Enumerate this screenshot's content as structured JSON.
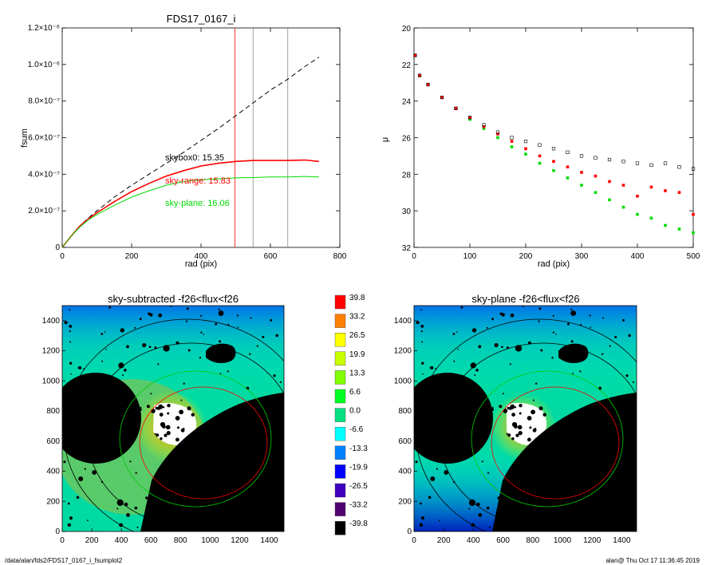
{
  "footer": {
    "path": "/data/alan/fds2/FDS17_0167_i_fsumplot2",
    "user_time": "alan@  Thu Oct 17 11:36:45 2019"
  },
  "chart_data": [
    {
      "type": "line",
      "title": "FDS17_0167_i",
      "xlabel": "rad (pix)",
      "ylabel": "fsum",
      "xlim": [
        0,
        800
      ],
      "ylim": [
        0,
        1.2e-06
      ],
      "x_ticks": [
        "0",
        "200",
        "400",
        "600",
        "800"
      ],
      "y_ticks": [
        "0",
        "2.0×10⁻⁷",
        "4.0×10⁻⁷",
        "6.0×10⁻⁷",
        "8.0×10⁻⁷",
        "1.0×10⁻⁶",
        "1.2×10⁻⁶"
      ],
      "vlines": [
        {
          "x": 498,
          "color": "#ff0000"
        },
        {
          "x": 550,
          "color": "#888888"
        },
        {
          "x": 650,
          "color": "#888888"
        }
      ],
      "annotations": [
        {
          "text": "skybox0: 15.35",
          "color": "#000000"
        },
        {
          "text": "sky-range: 15.83",
          "color": "#ff0000"
        },
        {
          "text": "sky-plane: 16.06",
          "color": "#00dd00"
        }
      ],
      "series": [
        {
          "color": "#000000",
          "style": "dashed",
          "x": [
            0,
            25,
            50,
            75,
            100,
            150,
            200,
            250,
            300,
            350,
            400,
            450,
            500,
            550,
            600,
            650,
            700,
            740
          ],
          "y": [
            0,
            6e-08,
            1.15e-07,
            1.6e-07,
            2e-07,
            2.75e-07,
            3.4e-07,
            4e-07,
            4.6e-07,
            5.2e-07,
            5.85e-07,
            6.5e-07,
            7.2e-07,
            7.9e-07,
            8.6e-07,
            9.2e-07,
            9.9e-07,
            1.04e-06
          ]
        },
        {
          "color": "#ff0000",
          "style": "solid",
          "x": [
            0,
            25,
            50,
            75,
            100,
            150,
            200,
            250,
            300,
            350,
            400,
            450,
            500,
            550,
            600,
            650,
            700,
            740
          ],
          "y": [
            0,
            6e-08,
            1.15e-07,
            1.55e-07,
            1.9e-07,
            2.5e-07,
            3.05e-07,
            3.5e-07,
            3.9e-07,
            4.2e-07,
            4.45e-07,
            4.6e-07,
            4.7e-07,
            4.75e-07,
            4.75e-07,
            4.75e-07,
            4.78e-07,
            4.7e-07
          ]
        },
        {
          "color": "#00dd00",
          "style": "solid",
          "x": [
            0,
            25,
            50,
            75,
            100,
            150,
            200,
            250,
            300,
            350,
            400,
            450,
            500,
            550,
            600,
            650,
            700,
            740
          ],
          "y": [
            0,
            6e-08,
            1.1e-07,
            1.5e-07,
            1.8e-07,
            2.3e-07,
            2.75e-07,
            3.1e-07,
            3.4e-07,
            3.6e-07,
            3.7e-07,
            3.75e-07,
            3.8e-07,
            3.82e-07,
            3.85e-07,
            3.85e-07,
            3.88e-07,
            3.85e-07
          ]
        }
      ]
    },
    {
      "type": "scatter",
      "title": "",
      "xlabel": "rad (pix)",
      "ylabel": "μ",
      "xlim": [
        0,
        500
      ],
      "ylim": [
        32,
        20
      ],
      "x_ticks": [
        "0",
        "100",
        "200",
        "300",
        "400",
        "500"
      ],
      "y_ticks": [
        "20",
        "22",
        "24",
        "26",
        "28",
        "30",
        "32"
      ],
      "series": [
        {
          "color": "#000000",
          "marker": "open-square",
          "x": [
            2,
            10,
            25,
            50,
            75,
            100,
            125,
            150,
            175,
            200,
            225,
            250,
            275,
            300,
            325,
            350,
            375,
            400,
            425,
            450,
            475,
            500
          ],
          "y": [
            21.5,
            22.6,
            23.1,
            23.8,
            24.4,
            24.9,
            25.3,
            25.7,
            26.0,
            26.2,
            26.4,
            26.6,
            26.8,
            27.0,
            27.1,
            27.2,
            27.3,
            27.4,
            27.5,
            27.4,
            27.6,
            27.7
          ]
        },
        {
          "color": "#ff0000",
          "marker": "filled-square",
          "x": [
            2,
            10,
            25,
            50,
            75,
            100,
            125,
            150,
            175,
            200,
            225,
            250,
            275,
            300,
            325,
            350,
            375,
            400,
            425,
            450,
            475,
            500
          ],
          "y": [
            21.5,
            22.6,
            23.1,
            23.8,
            24.4,
            24.9,
            25.4,
            25.8,
            26.2,
            26.6,
            27.0,
            27.3,
            27.6,
            27.9,
            28.1,
            28.4,
            28.6,
            29.2,
            28.7,
            28.9,
            29.0,
            30.2
          ]
        },
        {
          "color": "#00dd00",
          "marker": "filled-square",
          "x": [
            2,
            10,
            25,
            50,
            75,
            100,
            125,
            150,
            175,
            200,
            225,
            250,
            275,
            300,
            325,
            350,
            375,
            400,
            425,
            450,
            475,
            500
          ],
          "y": [
            21.5,
            22.6,
            23.1,
            23.8,
            24.4,
            25.0,
            25.5,
            26.0,
            26.5,
            26.9,
            27.4,
            27.8,
            28.2,
            28.6,
            29.0,
            29.4,
            29.8,
            30.2,
            30.4,
            30.8,
            31.0,
            31.2
          ]
        }
      ]
    },
    {
      "type": "heatmap",
      "title": "sky-subtracted -f26<flux<f26",
      "xlim": [
        0,
        1500
      ],
      "ylim": [
        0,
        1500
      ],
      "x_ticks": [
        "0",
        "200",
        "400",
        "600",
        "800",
        "1000",
        "1200",
        "1400"
      ],
      "y_ticks": [
        "0",
        "200",
        "400",
        "600",
        "800",
        "1000",
        "1200",
        "1400"
      ]
    },
    {
      "type": "heatmap",
      "title": "sky-plane -f26<flux<f26",
      "xlim": [
        0,
        1500
      ],
      "ylim": [
        0,
        1500
      ],
      "x_ticks": [
        "0",
        "200",
        "400",
        "600",
        "800",
        "1000",
        "1200",
        "1400"
      ],
      "y_ticks": [
        "0",
        "200",
        "400",
        "600",
        "800",
        "1000",
        "1200",
        "1400"
      ]
    }
  ],
  "colorbar": {
    "levels": [
      {
        "label": "39.8",
        "color": "#ff0000"
      },
      {
        "label": "33.2",
        "color": "#ff8000"
      },
      {
        "label": "26.5",
        "color": "#ffff00"
      },
      {
        "label": "19.9",
        "color": "#c8ff00"
      },
      {
        "label": "13.3",
        "color": "#80ff00"
      },
      {
        "label": "6.6",
        "color": "#00ff20"
      },
      {
        "label": "0.0",
        "color": "#00e080"
      },
      {
        "label": "-6.6",
        "color": "#00ffff"
      },
      {
        "label": "-13.3",
        "color": "#0080ff"
      },
      {
        "label": "-19.9",
        "color": "#0000ff"
      },
      {
        "label": "-26.5",
        "color": "#4000c0"
      },
      {
        "label": "-33.2",
        "color": "#500070"
      },
      {
        "label": "-39.8",
        "color": "#000000"
      }
    ]
  }
}
